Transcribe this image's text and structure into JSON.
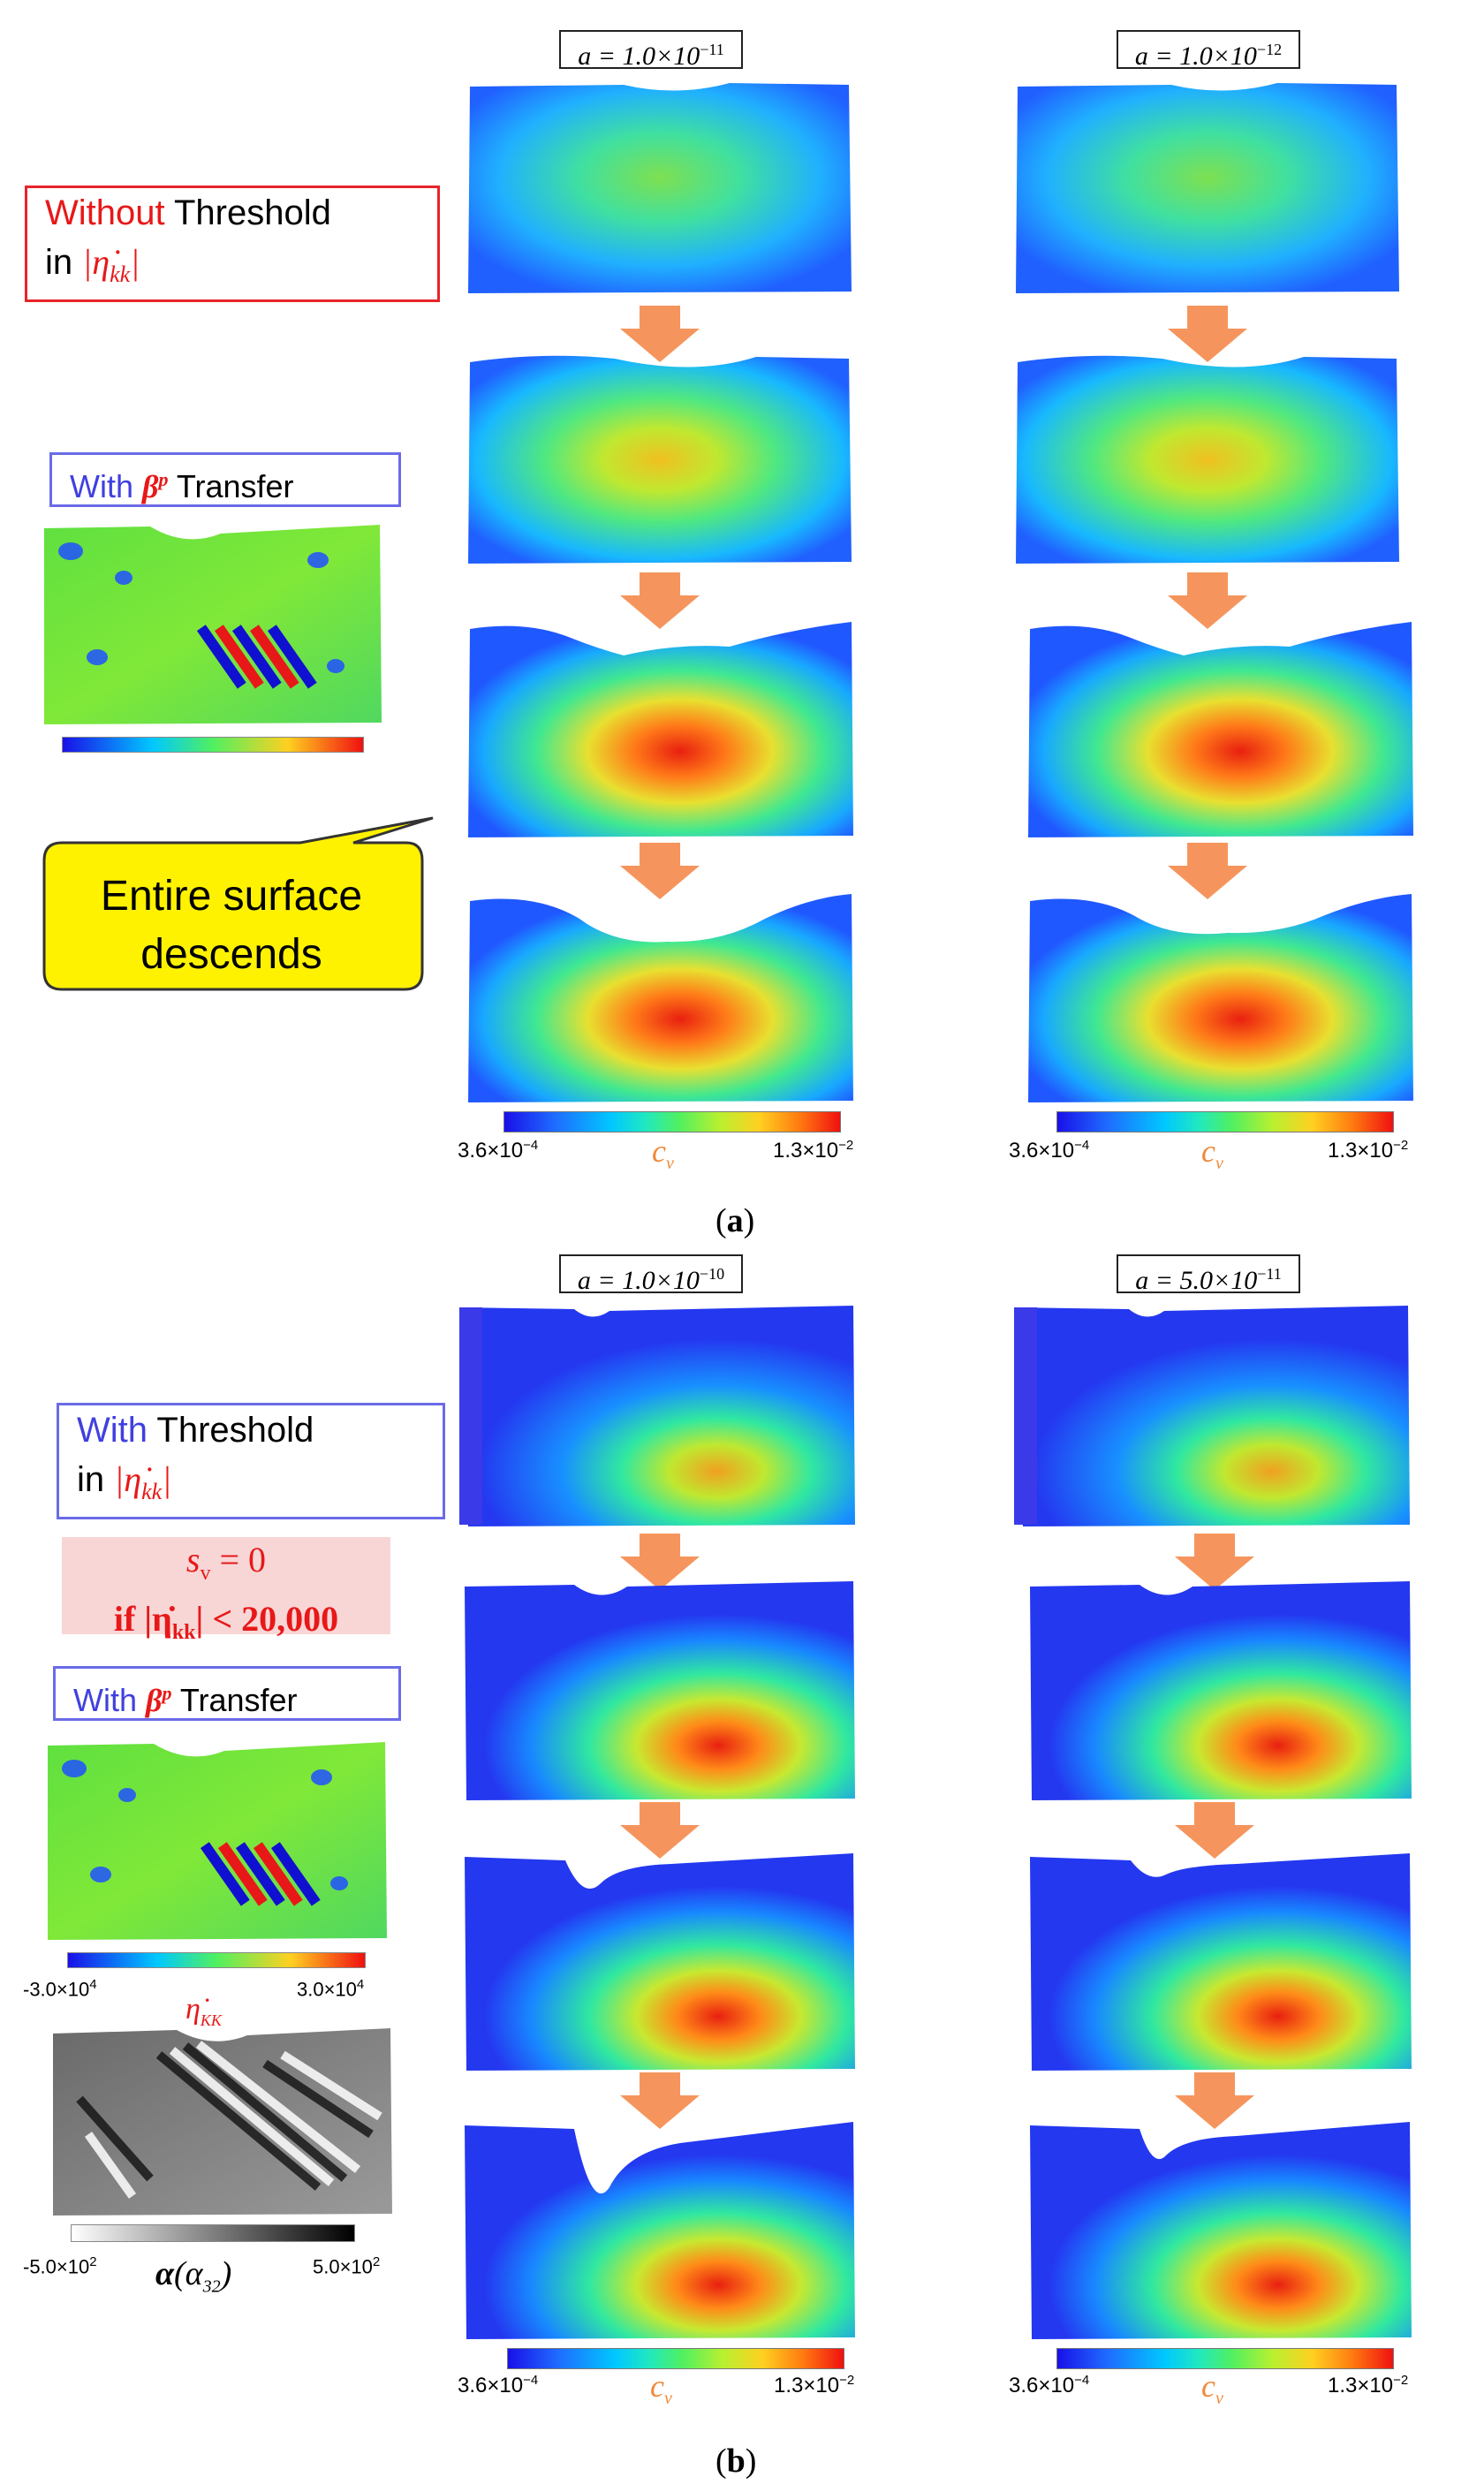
{
  "part_a": {
    "caption": "a",
    "columns": [
      {
        "a_label": "a = 1.0×10",
        "a_exp": "−11"
      },
      {
        "a_label": "a = 1.0×10",
        "a_exp": "−12"
      }
    ],
    "colorbar": {
      "min_base": "3.6×10",
      "min_exp": "−4",
      "max_base": "1.3×10",
      "max_exp": "−2",
      "var": "c",
      "var_sub": "v"
    },
    "box_without": {
      "word1": "Without",
      "word2": " Threshold",
      "line2_prefix": "in  ",
      "math": "|η̇",
      "math_sub": "kk",
      "math_end": "|"
    },
    "box_with_beta": {
      "word1": "With ",
      "beta": "β",
      "beta_sup": "p",
      "word2": " Transfer"
    },
    "callout": {
      "line1": "Entire surface",
      "line2": "descends"
    }
  },
  "part_b": {
    "caption": "b",
    "columns": [
      {
        "a_label": "a = 1.0×10",
        "a_exp": "−10"
      },
      {
        "a_label": "a = 5.0×10",
        "a_exp": "−11"
      }
    ],
    "colorbar": {
      "min_base": "3.6×10",
      "min_exp": "−4",
      "max_base": "1.3×10",
      "max_exp": "−2",
      "var": "c",
      "var_sub": "v"
    },
    "box_with": {
      "word1": "With",
      "word2": " Threshold",
      "line2_prefix": "in  ",
      "math": "|η̇",
      "math_sub": "kk",
      "math_end": "|"
    },
    "condition": {
      "line1": "s",
      "line1_sub": "v",
      "line1_end": " = 0",
      "line2": "if |η̇",
      "line2_sub": "kk",
      "line2_end": "| < 20,000"
    },
    "box_with_beta": {
      "word1": "With ",
      "beta": "β",
      "beta_sup": "p",
      "word2": " Transfer"
    },
    "eta_bar": {
      "min": "-3.0×10",
      "min_exp": "4",
      "max": "3.0×10",
      "max_exp": "4",
      "label": "η̇",
      "label_sub": "KK"
    },
    "alpha_bar": {
      "min": "-5.0×10",
      "min_exp": "2",
      "max": "5.0×10",
      "max_exp": "2",
      "label": "α",
      "label_arg": "(α",
      "label_arg_sub": "32",
      "label_arg_end": ")"
    }
  }
}
